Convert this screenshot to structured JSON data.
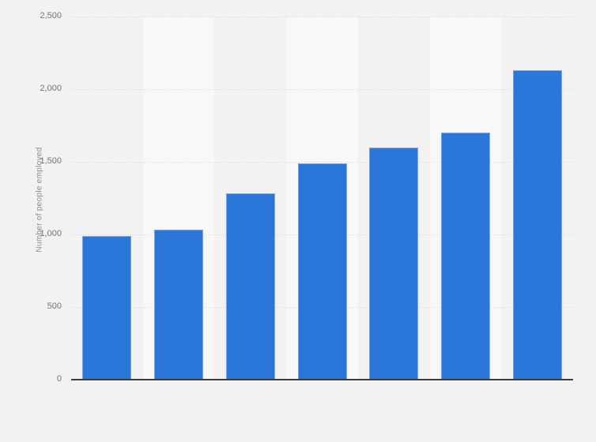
{
  "chart_data": {
    "type": "bar",
    "title": "",
    "xlabel": "",
    "ylabel": "Number of people employed",
    "values": [
      990,
      1030,
      1280,
      1490,
      1600,
      1700,
      2130
    ],
    "series": [
      {
        "name": "Number of people employed",
        "values": [
          990,
          1030,
          1280,
          1490,
          1600,
          1700,
          2130
        ]
      }
    ],
    "ylim": [
      0,
      2500
    ],
    "yticks": [
      0,
      500,
      1000,
      1500,
      2000,
      2500
    ],
    "ytick_labels": [
      "0",
      "500",
      "1,000",
      "1,500",
      "2,000",
      "2,500"
    ],
    "grid": "horizontal-dotted",
    "legend": "none",
    "colors": {
      "bar": "#2a76d9",
      "bar_edge": "rgba(255,255,255,0.35)",
      "background": "#f2f2f2",
      "stripe_light": "#f8f8f8",
      "gridline": "#d4d4d4",
      "axis_line": "#3d3d3d",
      "tick_text": "#757575",
      "axis_title_text": "#8c8c8c"
    }
  }
}
